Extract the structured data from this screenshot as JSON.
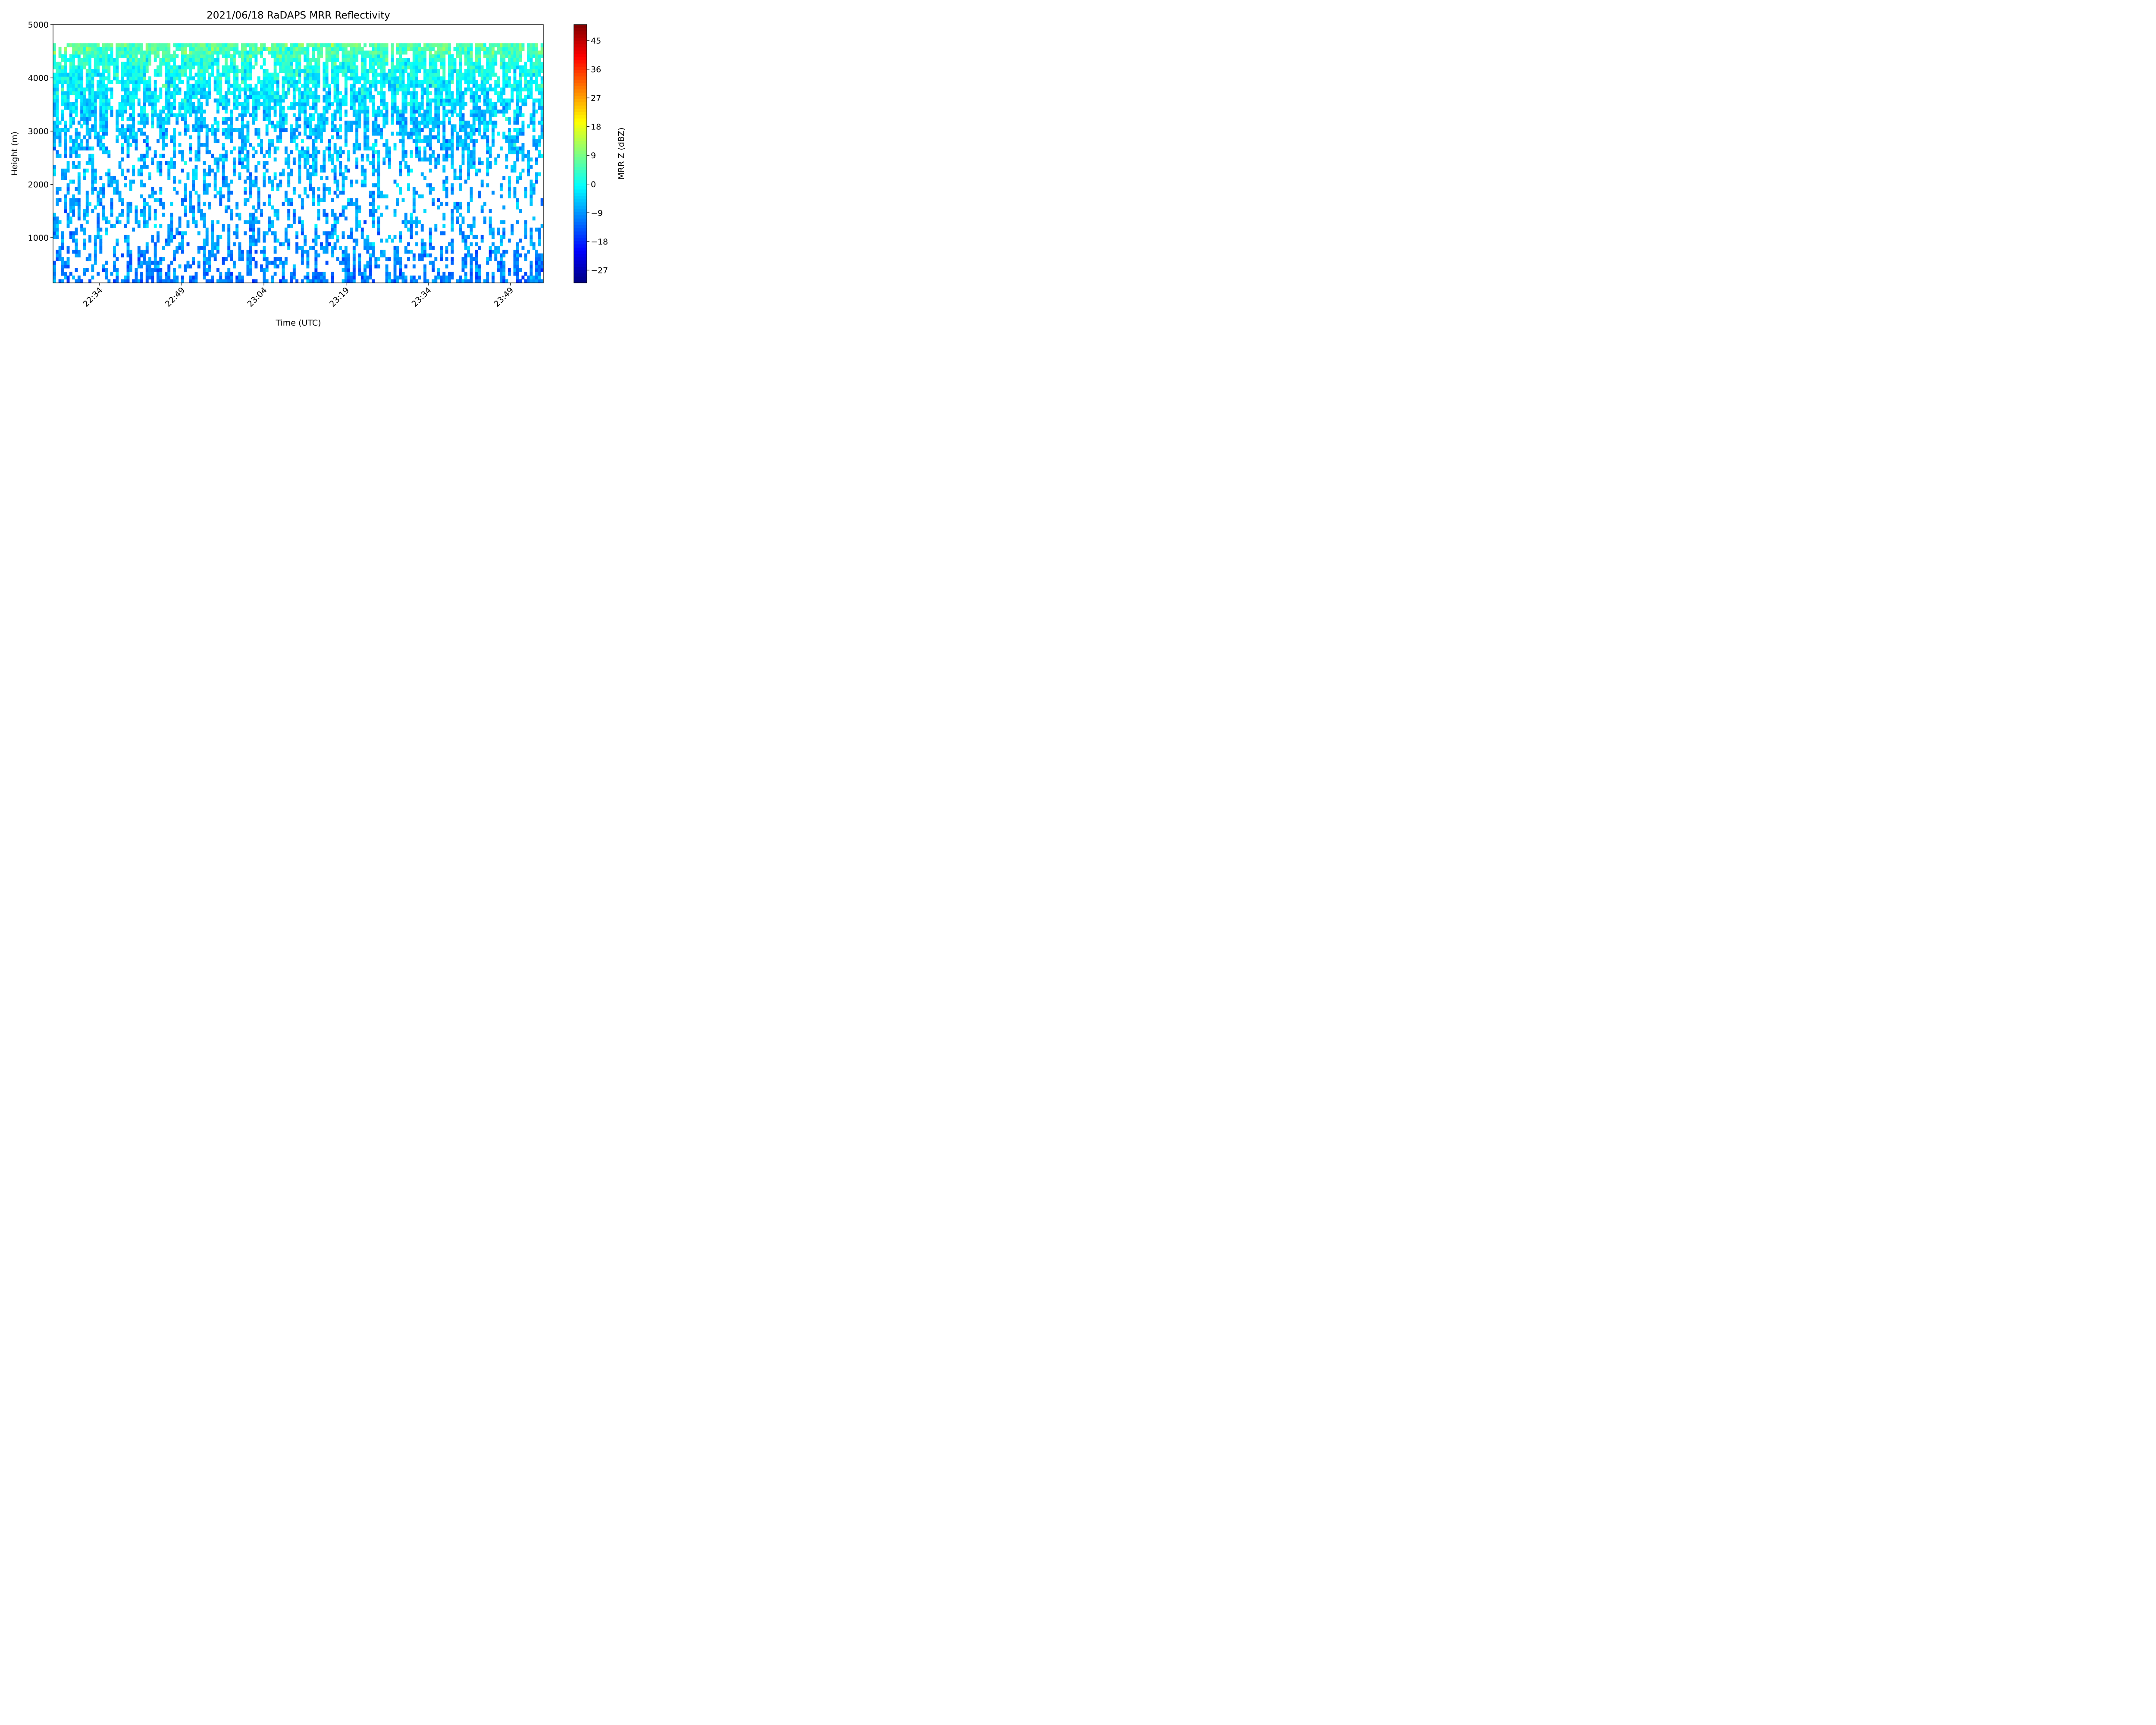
{
  "chart_data": {
    "type": "heatmap",
    "title": "2021/06/18 RaDAPS MRR Reflectivity",
    "xlabel": "Time (UTC)",
    "ylabel": "Height (m)",
    "x_range": [
      "22:25:30",
      "23:55:00"
    ],
    "x_ticks": [
      "22:34",
      "22:49",
      "23:04",
      "23:19",
      "23:34",
      "23:49"
    ],
    "ylim": [
      150,
      5000
    ],
    "y_ticks": [
      1000,
      2000,
      3000,
      4000,
      5000
    ],
    "data_top_height_m": 4650,
    "colorbar": {
      "label": "MRR Z (dBZ)",
      "range": [
        -31,
        50
      ],
      "ticks": [
        "45",
        "36",
        "27",
        "18",
        "9",
        "0",
        "−9",
        "−18",
        "−27"
      ],
      "tick_values": [
        45,
        36,
        27,
        18,
        9,
        0,
        -9,
        -18,
        -27
      ],
      "colormap": "jet"
    },
    "profile_mean_dbz": [
      {
        "height_m": 300,
        "mean": -11
      },
      {
        "height_m": 1000,
        "mean": -9
      },
      {
        "height_m": 2000,
        "mean": -7
      },
      {
        "height_m": 3000,
        "mean": -6
      },
      {
        "height_m": 3800,
        "mean": -2
      },
      {
        "height_m": 4300,
        "mean": 2
      },
      {
        "height_m": 4650,
        "mean": 7
      }
    ],
    "missing_fraction_by_height": [
      {
        "height_m": 300,
        "fraction": 0.35
      },
      {
        "height_m": 1500,
        "fraction": 0.4
      },
      {
        "height_m": 2500,
        "fraction": 0.35
      },
      {
        "height_m": 3500,
        "fraction": 0.15
      },
      {
        "height_m": 4650,
        "fraction": 0.08
      }
    ],
    "grid": false,
    "legend": "none"
  }
}
